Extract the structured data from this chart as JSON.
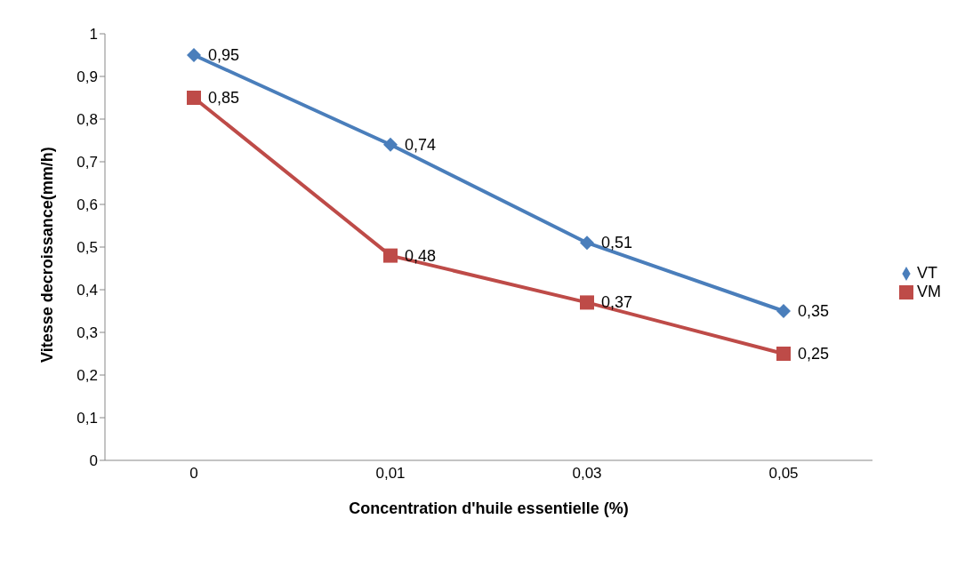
{
  "chart_data": {
    "type": "line",
    "xlabel": "Concentration d'huile essentielle (%)",
    "ylabel": "Vitesse decroissance(mm/h)",
    "categories": [
      "0",
      "0,01",
      "0,03",
      "0,05"
    ],
    "series": [
      {
        "name": "VT",
        "color": "#4a7ebb",
        "marker": "diamond",
        "values": [
          0.95,
          0.74,
          0.51,
          0.35
        ],
        "value_labels": [
          "0,95",
          "0,74",
          "0,51",
          "0,35"
        ]
      },
      {
        "name": "VM",
        "color": "#be4b48",
        "marker": "square",
        "values": [
          0.85,
          0.48,
          0.37,
          0.25
        ],
        "value_labels": [
          "0,85",
          "0,48",
          "0,37",
          "0,25"
        ]
      }
    ],
    "ylim": [
      0,
      1
    ],
    "yticks": [
      0,
      {
        "value": 0.1,
        "label": "0,1"
      },
      {
        "value": 0.2,
        "label": "0,2"
      },
      {
        "value": 0.3,
        "label": "0,3"
      },
      {
        "value": 0.4,
        "label": "0,4"
      },
      {
        "value": 0.5,
        "label": "0,5"
      },
      {
        "value": 0.6,
        "label": "0,6"
      },
      {
        "value": 0.7,
        "label": "0,7"
      },
      {
        "value": 0.8,
        "label": "0,8"
      },
      {
        "value": 0.9,
        "label": "0,9"
      },
      1
    ],
    "legend": "right",
    "line_style": "solid"
  }
}
